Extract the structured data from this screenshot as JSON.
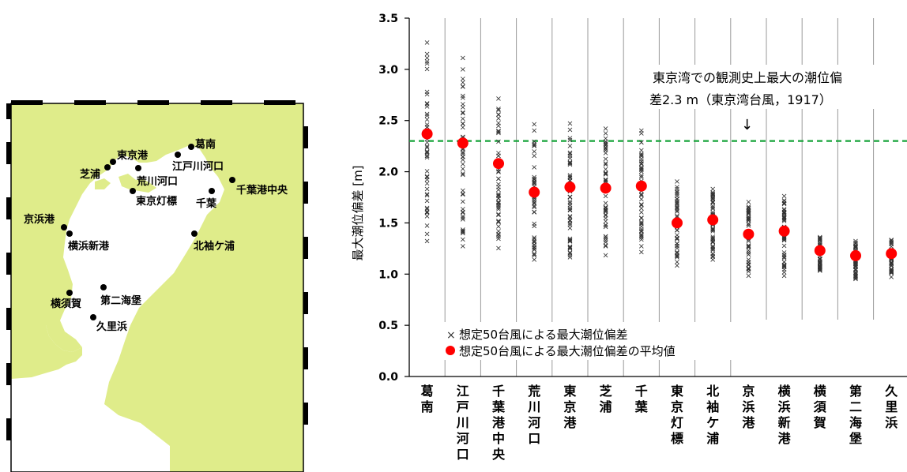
{
  "colors": {
    "land": "#dfec8a",
    "water": "#ffffff",
    "mean_marker": "#ff0000",
    "scatter_marker": "#333333",
    "reference_line": "#17a33a"
  },
  "map": {
    "stations": [
      {
        "name": "葛南"
      },
      {
        "name": "東京港"
      },
      {
        "name": "江戸川河口"
      },
      {
        "name": "芝浦"
      },
      {
        "name": "荒川河口"
      },
      {
        "name": "千葉港中央"
      },
      {
        "name": "東京灯標"
      },
      {
        "name": "千葉"
      },
      {
        "name": "京浜港"
      },
      {
        "name": "北袖ケ浦"
      },
      {
        "name": "横浜新港"
      },
      {
        "name": "第二海堡"
      },
      {
        "name": "横須賀"
      },
      {
        "name": "久里浜"
      }
    ]
  },
  "chart_data": {
    "type": "scatter",
    "ylabel": "最大潮位偏差 [m]",
    "ylim": [
      0.0,
      3.5
    ],
    "yticks": [
      "0.0",
      "0.5",
      "1.0",
      "1.5",
      "2.0",
      "2.5",
      "3.0",
      "3.5"
    ],
    "grid": "vertical separators between categories",
    "legend_position": "bottom-left",
    "categories": [
      "葛南",
      "江戸川河口",
      "千葉港中央",
      "荒川河口",
      "東京港",
      "芝浦",
      "千葉",
      "東京灯標",
      "北袖ケ浦",
      "京浜港",
      "横浜新港",
      "横須賀",
      "第二海堡",
      "久里浜"
    ],
    "series": [
      {
        "name": "想定50台風による最大潮位偏差",
        "marker": "x",
        "ranges": [
          [
            1.33,
            3.27
          ],
          [
            1.28,
            3.12
          ],
          [
            1.26,
            2.72
          ],
          [
            1.15,
            2.47
          ],
          [
            1.17,
            2.48
          ],
          [
            1.19,
            2.43
          ],
          [
            1.22,
            2.41
          ],
          [
            1.09,
            1.91
          ],
          [
            1.15,
            1.84
          ],
          [
            0.99,
            1.71
          ],
          [
            0.99,
            1.77
          ],
          [
            1.04,
            1.37
          ],
          [
            0.96,
            1.33
          ],
          [
            0.98,
            1.34
          ]
        ]
      },
      {
        "name": "想定50台風による最大潮位偏差の平均値",
        "marker": "circle",
        "values": [
          2.37,
          2.28,
          2.08,
          1.8,
          1.85,
          1.84,
          1.86,
          1.5,
          1.53,
          1.39,
          1.42,
          1.23,
          1.18,
          1.2
        ]
      }
    ],
    "reference": {
      "value": 2.3,
      "annotation_line1": "東京湾での観測史上最大の潮位偏",
      "annotation_line2": "差2.3 m（東京湾台風，1917）",
      "arrow": "↓"
    }
  }
}
